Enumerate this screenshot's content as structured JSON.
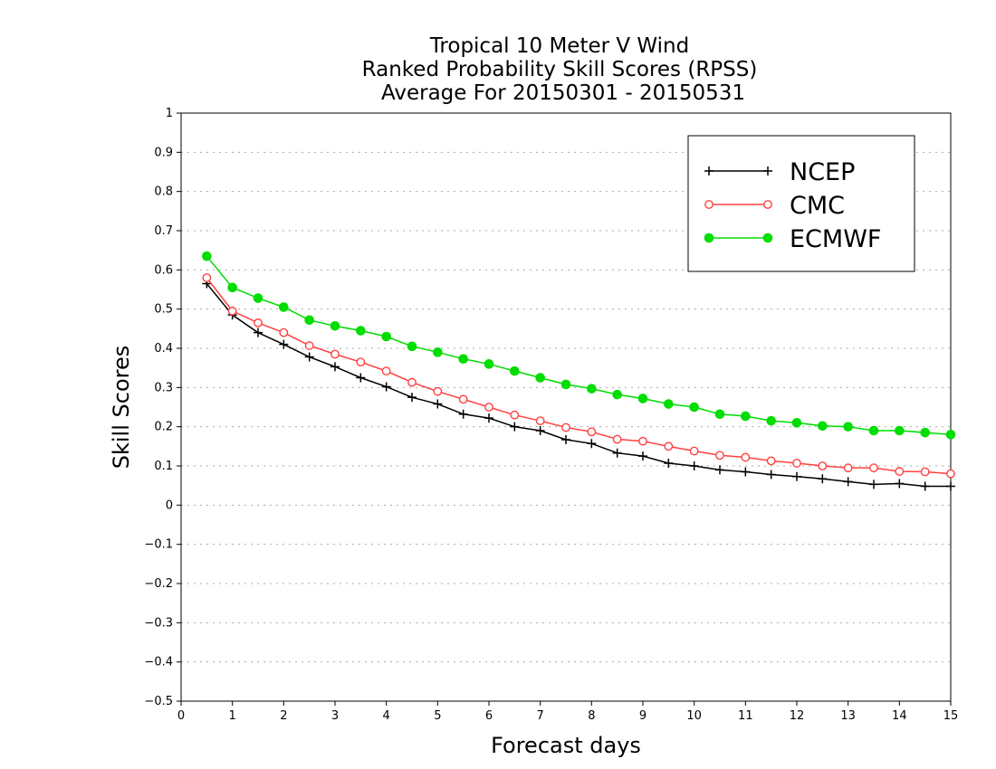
{
  "chart_data": {
    "type": "line",
    "title": [
      "Tropical 10 Meter V Wind",
      "Ranked Probability Skill Scores (RPSS)",
      "Average For 20150301 - 20150531"
    ],
    "xlabel": "Forecast days",
    "ylabel": "Skill Scores",
    "xlim": [
      0,
      15
    ],
    "ylim": [
      -0.5,
      1
    ],
    "xticks": [
      "0",
      "1",
      "2",
      "3",
      "4",
      "5",
      "6",
      "7",
      "8",
      "9",
      "10",
      "11",
      "12",
      "13",
      "14",
      "15"
    ],
    "yticks": [
      "−0.5",
      "−0.4",
      "−0.3",
      "−0.2",
      "−0.1",
      "0",
      "0.1",
      "0.2",
      "0.3",
      "0.4",
      "0.5",
      "0.6",
      "0.7",
      "0.8",
      "0.9",
      "1"
    ],
    "grid": "horizontal dotted",
    "legend_position": "top-right",
    "x": [
      0.5,
      1,
      1.5,
      2,
      2.5,
      3,
      3.5,
      4,
      4.5,
      5,
      5.5,
      6,
      6.5,
      7,
      7.5,
      8,
      8.5,
      9,
      9.5,
      10,
      10.5,
      11,
      11.5,
      12,
      12.5,
      13,
      13.5,
      14,
      14.5,
      15
    ],
    "series": [
      {
        "name": "NCEP",
        "color": "#000000",
        "marker": "plus",
        "values": [
          0.565,
          0.485,
          0.44,
          0.41,
          0.378,
          0.353,
          0.325,
          0.302,
          0.275,
          0.258,
          0.232,
          0.222,
          0.2,
          0.19,
          0.167,
          0.157,
          0.133,
          0.125,
          0.107,
          0.1,
          0.09,
          0.085,
          0.078,
          0.073,
          0.067,
          0.06,
          0.053,
          0.055,
          0.048,
          0.048
        ]
      },
      {
        "name": "CMC",
        "color": "#ff4040",
        "marker": "open-circle",
        "values": [
          0.58,
          0.495,
          0.465,
          0.44,
          0.407,
          0.385,
          0.365,
          0.342,
          0.313,
          0.29,
          0.27,
          0.25,
          0.23,
          0.215,
          0.198,
          0.187,
          0.168,
          0.163,
          0.15,
          0.138,
          0.127,
          0.122,
          0.113,
          0.107,
          0.1,
          0.095,
          0.095,
          0.086,
          0.085,
          0.08
        ]
      },
      {
        "name": "ECMWF",
        "color": "#00dd00",
        "marker": "filled-circle",
        "values": [
          0.635,
          0.555,
          0.528,
          0.505,
          0.472,
          0.457,
          0.445,
          0.43,
          0.405,
          0.39,
          0.373,
          0.36,
          0.342,
          0.325,
          0.308,
          0.297,
          0.282,
          0.272,
          0.258,
          0.25,
          0.232,
          0.227,
          0.215,
          0.21,
          0.202,
          0.2,
          0.19,
          0.19,
          0.185,
          0.18
        ]
      }
    ]
  }
}
